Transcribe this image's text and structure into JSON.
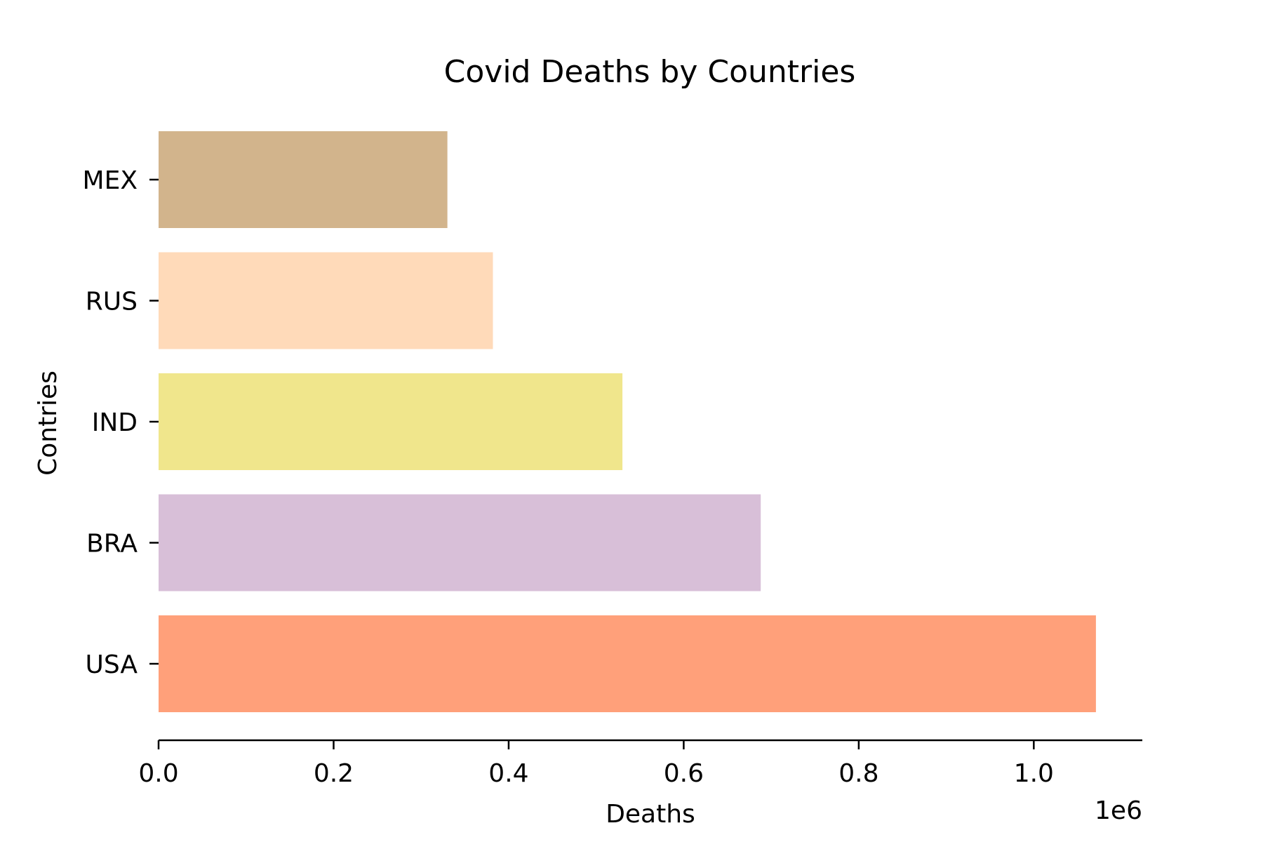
{
  "chart_data": {
    "type": "bar",
    "orientation": "horizontal",
    "title": "Covid Deaths by Countries",
    "xlabel": "Deaths",
    "ylabel": "Contries",
    "x_offset_label": "1e6",
    "categories": [
      "USA",
      "BRA",
      "IND",
      "RUS",
      "MEX"
    ],
    "values": [
      1071000,
      688000,
      530000,
      382000,
      330000
    ],
    "colors": [
      "#ffa07a",
      "#d8bfd8",
      "#f0e68c",
      "#ffdab9",
      "#d2b48c"
    ],
    "xlim": [
      0,
      1124000
    ],
    "x_ticks": [
      0,
      200000,
      400000,
      600000,
      800000,
      1000000
    ],
    "x_tick_labels": [
      "0.0",
      "0.2",
      "0.4",
      "0.6",
      "0.8",
      "1.0"
    ],
    "grid": false
  }
}
